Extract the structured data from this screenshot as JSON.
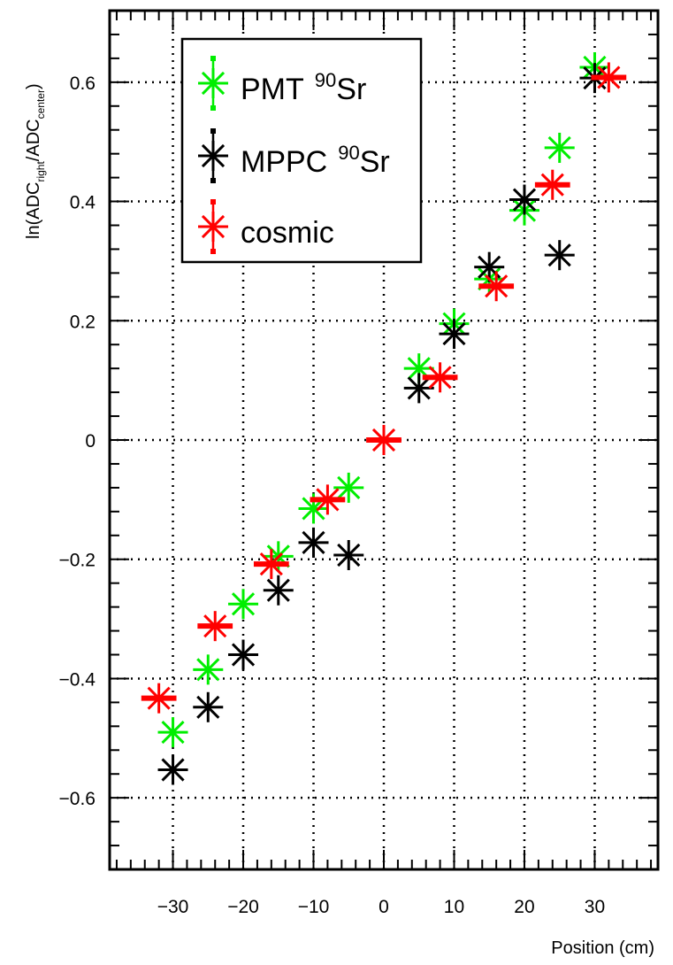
{
  "chart_data": {
    "type": "scatter",
    "title": "",
    "xlabel": "Position (cm)",
    "ylabel_parts": {
      "prefix": "ln(ADC",
      "sub1": "right",
      "middle": "/ADC",
      "sub2": "center",
      "suffix": ")"
    },
    "xlim": [
      -39,
      39
    ],
    "ylim": [
      -0.72,
      0.72
    ],
    "x_ticks": [
      -30,
      -20,
      -10,
      0,
      10,
      20,
      30
    ],
    "x_tick_labels": [
      "−30",
      "−20",
      "−10",
      "0",
      "10",
      "20",
      "30"
    ],
    "y_ticks": [
      -0.6,
      -0.4,
      -0.2,
      0,
      0.2,
      0.4,
      0.6
    ],
    "y_tick_labels": [
      "−0.6",
      "−0.4",
      "−0.2",
      "0",
      "0.2",
      "0.4",
      "0.6"
    ],
    "grid": true,
    "legend_position": "top-left",
    "series": [
      {
        "name": "PMT",
        "name_sup": "90",
        "name_suffix": "Sr",
        "color": "#00ee00",
        "x": [
          -30,
          -25,
          -20,
          -15,
          -10,
          -5,
          5,
          10,
          15,
          20,
          25,
          30
        ],
        "y": [
          -0.49,
          -0.385,
          -0.275,
          -0.195,
          -0.115,
          -0.08,
          0.12,
          0.195,
          0.27,
          0.385,
          0.49,
          0.625
        ],
        "xerr": [
          0,
          0,
          0,
          0,
          0,
          0,
          0,
          0,
          0,
          0,
          0,
          0
        ]
      },
      {
        "name": "MPPC",
        "name_sup": "90",
        "name_suffix": "Sr",
        "color": "#000000",
        "x": [
          -30,
          -25,
          -20,
          -15,
          -10,
          -5,
          5,
          10,
          15,
          20,
          25,
          30
        ],
        "y": [
          -0.553,
          -0.448,
          -0.36,
          -0.252,
          -0.172,
          -0.193,
          0.087,
          0.178,
          0.29,
          0.403,
          0.31,
          0.607
        ],
        "xerr": [
          0,
          0,
          0,
          0,
          0,
          0,
          0,
          0,
          0,
          0,
          0,
          0
        ]
      },
      {
        "name": "cosmic",
        "name_sup": "",
        "name_suffix": "",
        "color": "#ff0000",
        "x": [
          -32,
          -24,
          -16,
          -8,
          0,
          8,
          16,
          24,
          32
        ],
        "y": [
          -0.433,
          -0.312,
          -0.208,
          -0.1,
          0.0,
          0.105,
          0.258,
          0.428,
          0.608
        ],
        "xerr": [
          2.5,
          2.5,
          2.5,
          2.5,
          2.5,
          2.5,
          2.5,
          2.5,
          2.5
        ]
      }
    ]
  }
}
